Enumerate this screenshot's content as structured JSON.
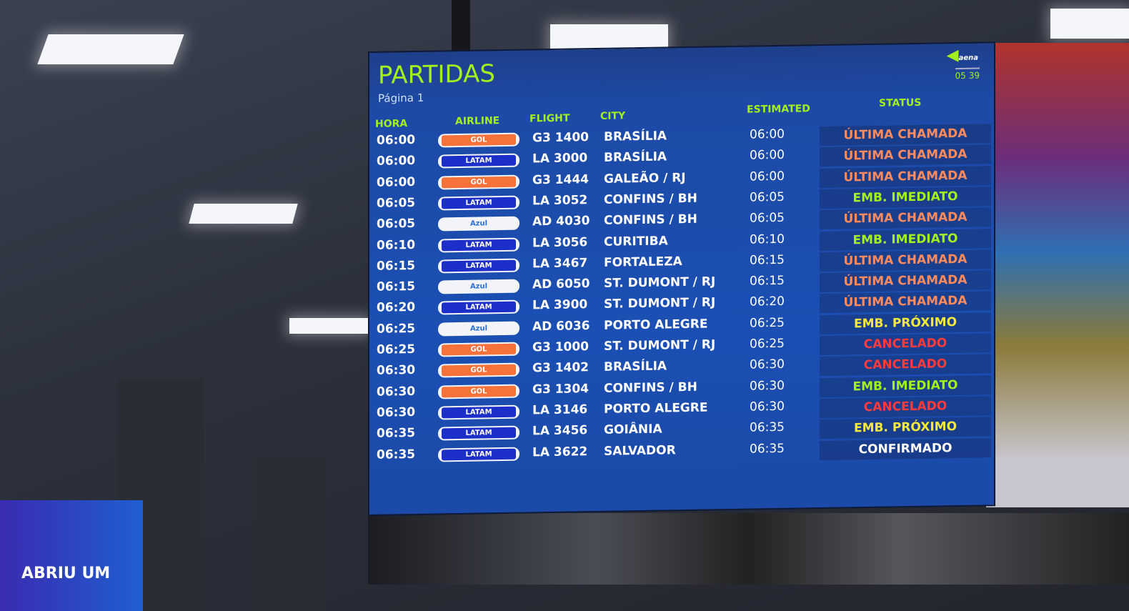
{
  "board": {
    "title": "PARTIDAS",
    "page": "Página 1",
    "logo": "aena",
    "clock": "05 39",
    "headers": {
      "hora": "HORA",
      "airline": "AIRLINE",
      "flight": "FLIGHT",
      "city": "CITY",
      "estimated": "ESTIMATED",
      "status": "STATUS"
    },
    "colors": {
      "header": "#a4f01e",
      "ultima": "#ff8a5c",
      "imediato": "#a4f01e",
      "proximo": "#f4e83a",
      "cancelado": "#ff3b3b",
      "confirmado": "#ffffff"
    },
    "rows": [
      {
        "hora": "06:00",
        "airline": "GOL",
        "flight": "G3 1400",
        "city": "BRASÍLIA",
        "estimated": "06:00",
        "status": "ÚLTIMA CHAMADA",
        "kind": "ultima"
      },
      {
        "hora": "06:00",
        "airline": "LATAM",
        "flight": "LA 3000",
        "city": "BRASÍLIA",
        "estimated": "06:00",
        "status": "ÚLTIMA CHAMADA",
        "kind": "ultima"
      },
      {
        "hora": "06:00",
        "airline": "GOL",
        "flight": "G3 1444",
        "city": "GALEÃO / RJ",
        "estimated": "06:00",
        "status": "ÚLTIMA CHAMADA",
        "kind": "ultima"
      },
      {
        "hora": "06:05",
        "airline": "LATAM",
        "flight": "LA 3052",
        "city": "CONFINS / BH",
        "estimated": "06:05",
        "status": "EMB. IMEDIATO",
        "kind": "imediato"
      },
      {
        "hora": "06:05",
        "airline": "Azul",
        "flight": "AD 4030",
        "city": "CONFINS / BH",
        "estimated": "06:05",
        "status": "ÚLTIMA CHAMADA",
        "kind": "ultima"
      },
      {
        "hora": "06:10",
        "airline": "LATAM",
        "flight": "LA 3056",
        "city": "CURITIBA",
        "estimated": "06:10",
        "status": "EMB. IMEDIATO",
        "kind": "imediato"
      },
      {
        "hora": "06:15",
        "airline": "LATAM",
        "flight": "LA 3467",
        "city": "FORTALEZA",
        "estimated": "06:15",
        "status": "ÚLTIMA CHAMADA",
        "kind": "ultima"
      },
      {
        "hora": "06:15",
        "airline": "Azul",
        "flight": "AD 6050",
        "city": "ST. DUMONT / RJ",
        "estimated": "06:15",
        "status": "ÚLTIMA CHAMADA",
        "kind": "ultima"
      },
      {
        "hora": "06:20",
        "airline": "LATAM",
        "flight": "LA 3900",
        "city": "ST. DUMONT / RJ",
        "estimated": "06:20",
        "status": "ÚLTIMA CHAMADA",
        "kind": "ultima"
      },
      {
        "hora": "06:25",
        "airline": "Azul",
        "flight": "AD 6036",
        "city": "PORTO ALEGRE",
        "estimated": "06:25",
        "status": "EMB. PRÓXIMO",
        "kind": "proximo"
      },
      {
        "hora": "06:25",
        "airline": "GOL",
        "flight": "G3 1000",
        "city": "ST. DUMONT / RJ",
        "estimated": "06:25",
        "status": "CANCELADO",
        "kind": "cancelado"
      },
      {
        "hora": "06:30",
        "airline": "GOL",
        "flight": "G3 1402",
        "city": "BRASÍLIA",
        "estimated": "06:30",
        "status": "CANCELADO",
        "kind": "cancelado"
      },
      {
        "hora": "06:30",
        "airline": "GOL",
        "flight": "G3 1304",
        "city": "CONFINS / BH",
        "estimated": "06:30",
        "status": "EMB. IMEDIATO",
        "kind": "imediato"
      },
      {
        "hora": "06:30",
        "airline": "LATAM",
        "flight": "LA 3146",
        "city": "PORTO ALEGRE",
        "estimated": "06:30",
        "status": "CANCELADO",
        "kind": "cancelado"
      },
      {
        "hora": "06:35",
        "airline": "LATAM",
        "flight": "LA 3456",
        "city": "GOIÂNIA",
        "estimated": "06:35",
        "status": "EMB. PRÓXIMO",
        "kind": "proximo"
      },
      {
        "hora": "06:35",
        "airline": "LATAM",
        "flight": "LA 3622",
        "city": "SALVADOR",
        "estimated": "06:35",
        "status": "CONFIRMADO",
        "kind": "confirmado"
      }
    ]
  },
  "banner": {
    "text": "ABRIU UM"
  }
}
